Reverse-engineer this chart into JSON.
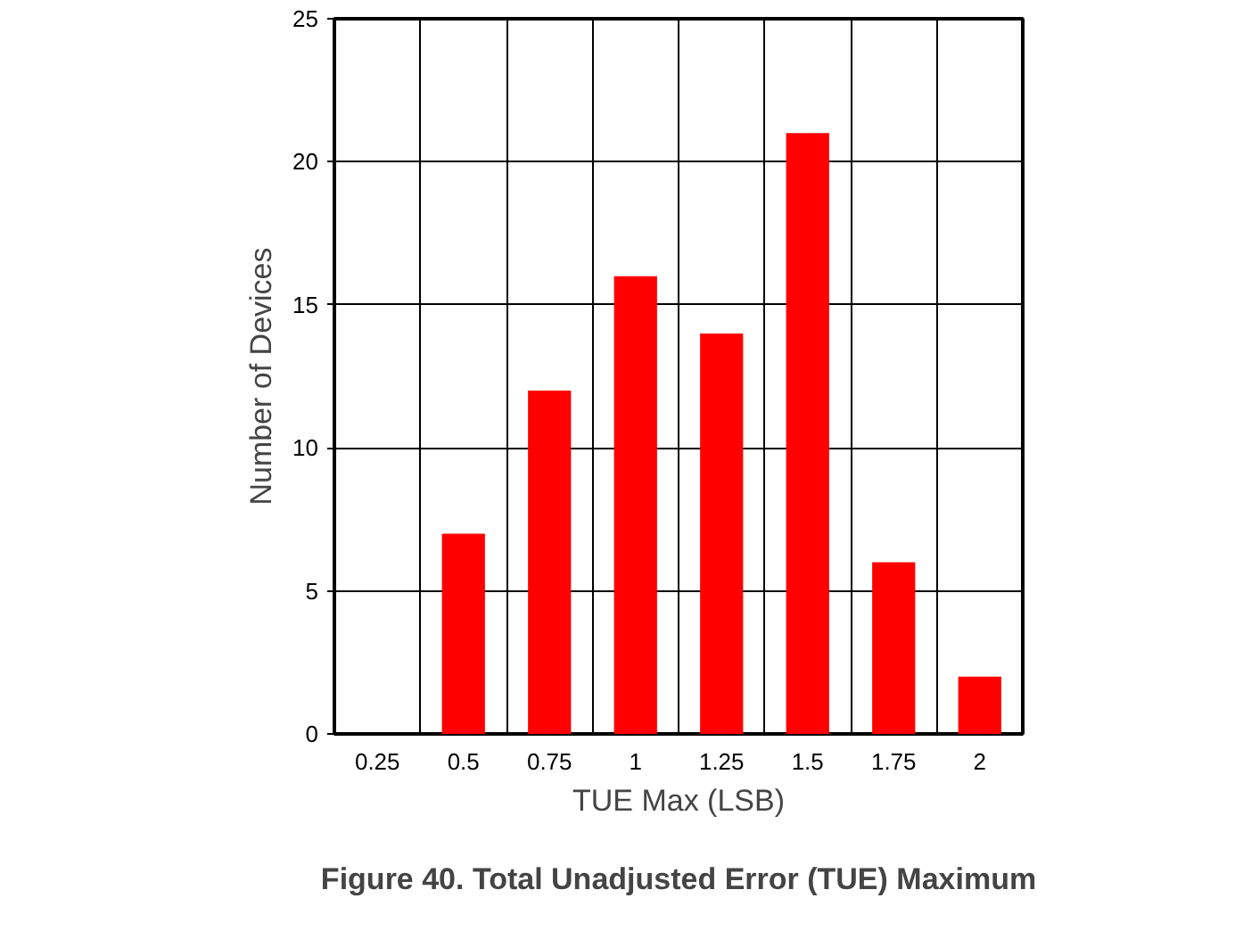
{
  "chart_data": {
    "type": "bar",
    "xlabel": "TUE Max (LSB)",
    "ylabel": "Number of Devices",
    "categories": [
      "0.25",
      "0.5",
      "0.75",
      "1",
      "1.25",
      "1.5",
      "1.75",
      "2"
    ],
    "values": [
      0,
      7,
      12,
      16,
      14,
      21,
      6,
      2
    ],
    "color": "#ff0000",
    "ylim": [
      0,
      25
    ],
    "yticks": [
      0,
      5,
      10,
      15,
      20,
      25
    ],
    "grid": true,
    "annotations": [
      "Figure 40. Total Unadjusted Error (TUE) Maximum"
    ]
  }
}
